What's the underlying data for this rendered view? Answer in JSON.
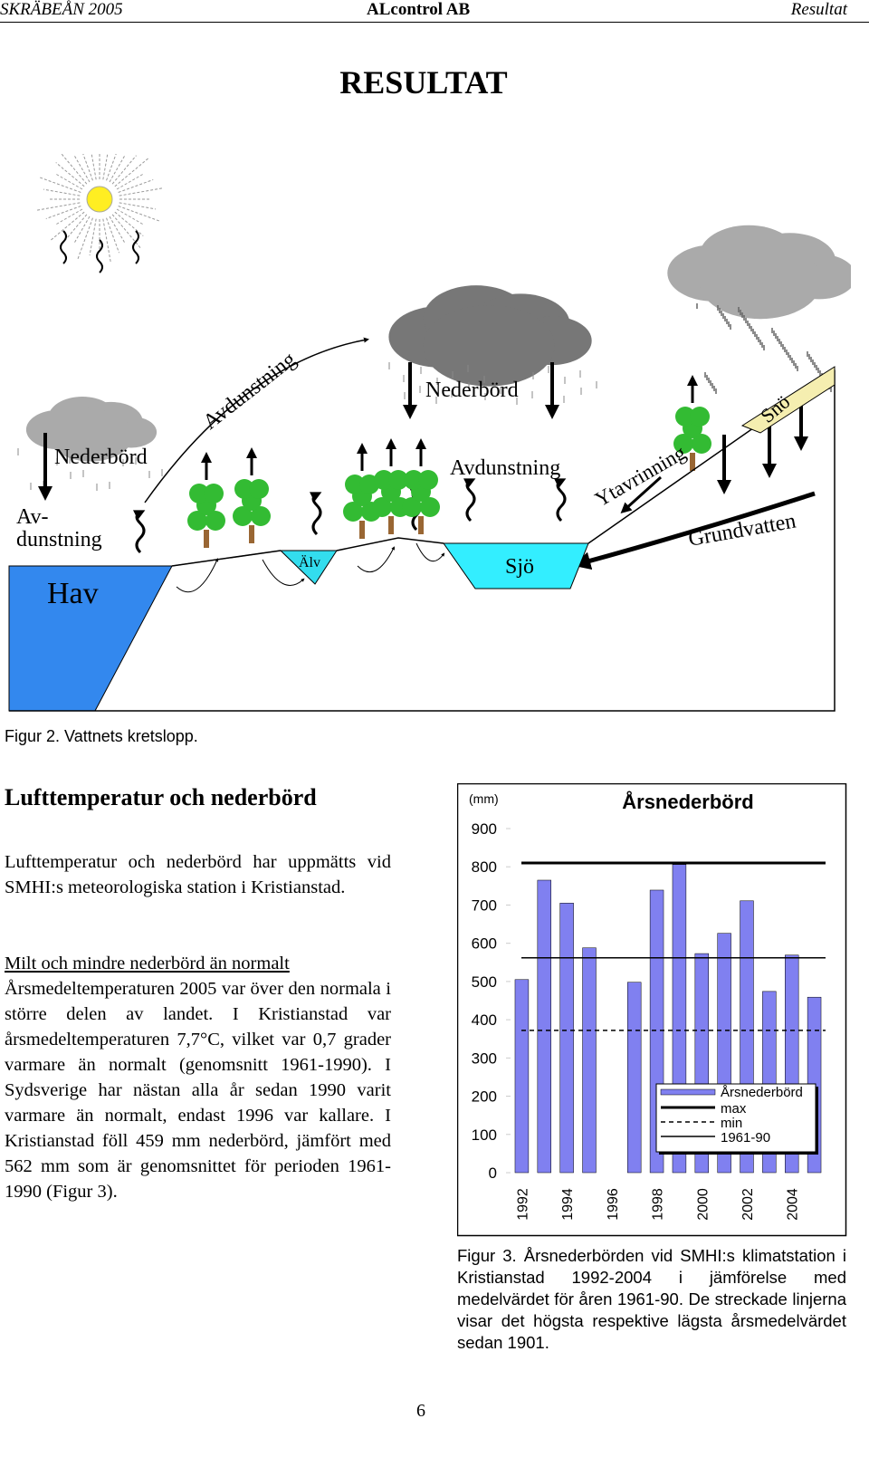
{
  "header": {
    "left": "SKRÄBEÅN 2005",
    "center": "ALcontrol AB",
    "right": "Resultat"
  },
  "title": "RESULTAT",
  "diagram": {
    "evaporation_sea": [
      "Av-",
      "dunstning"
    ],
    "precipitation_left": "Nederbörd",
    "evaporation_slope": "Avdunstning",
    "precipitation_center": "Nederbörd",
    "evaporation_lake": "Avdunstning",
    "runoff": "Ytavrinning",
    "snow": "Snö",
    "groundwater": "Grundvatten",
    "sea": "Hav",
    "river": "Älv",
    "lake": "Sjö"
  },
  "figure2_caption": "Figur 2. Vattnets kretslopp.",
  "section": {
    "heading": "Lufttemperatur och nederbörd",
    "intro": "Lufttemperatur och nederbörd har uppmätts vid SMHI:s meteorologiska station i Kristianstad.",
    "subheading": "Milt och mindre nederbörd än normalt",
    "body": "Årsmedeltemperaturen 2005 var över den normala i större delen av landet. I Kristianstad var årsmedeltemperaturen 7,7°C, vilket var 0,7 grader varmare än normalt (genomsnitt 1961-1990). I Sydsverige har nästan alla år sedan 1990 varit varmare än normalt, endast 1996 var kallare. I Kristianstad föll 459 mm nederbörd, jämfört med 562 mm som är genomsnittet för perioden 1961-1990 (Figur 3)."
  },
  "chart_data": {
    "type": "bar",
    "title": "Årsnederbörd",
    "y_label": "(mm)",
    "categories": [
      "1992",
      null,
      "1994",
      null,
      "1996",
      null,
      "1998",
      null,
      "2000",
      null,
      "2002",
      null,
      "2004",
      null
    ],
    "series": [
      {
        "name": "Årsnederbörd",
        "color": "#8080f0",
        "values": [
          505,
          765,
          705,
          588,
          null,
          498,
          739,
          806,
          573,
          626,
          711,
          474,
          569,
          459
        ]
      }
    ],
    "reference_lines": [
      {
        "name": "max",
        "value": 810,
        "style": "thick"
      },
      {
        "name": "min",
        "value": 372,
        "style": "dashed"
      },
      {
        "name": "1961-90",
        "value": 562,
        "style": "thin"
      }
    ],
    "ylim": [
      0,
      900
    ],
    "yticks": [
      0,
      100,
      200,
      300,
      400,
      500,
      600,
      700,
      800,
      900
    ],
    "legend": "right"
  },
  "figure3_caption": "Figur 3. Årsnederbörden vid SMHI:s klimatstation i Kristianstad 1992-2004 i jämförelse med medelvärdet för åren 1961-90. De streckade linjerna visar det högsta respektive lägsta årsmedelvärdet sedan 1901.",
  "page_number": "6"
}
